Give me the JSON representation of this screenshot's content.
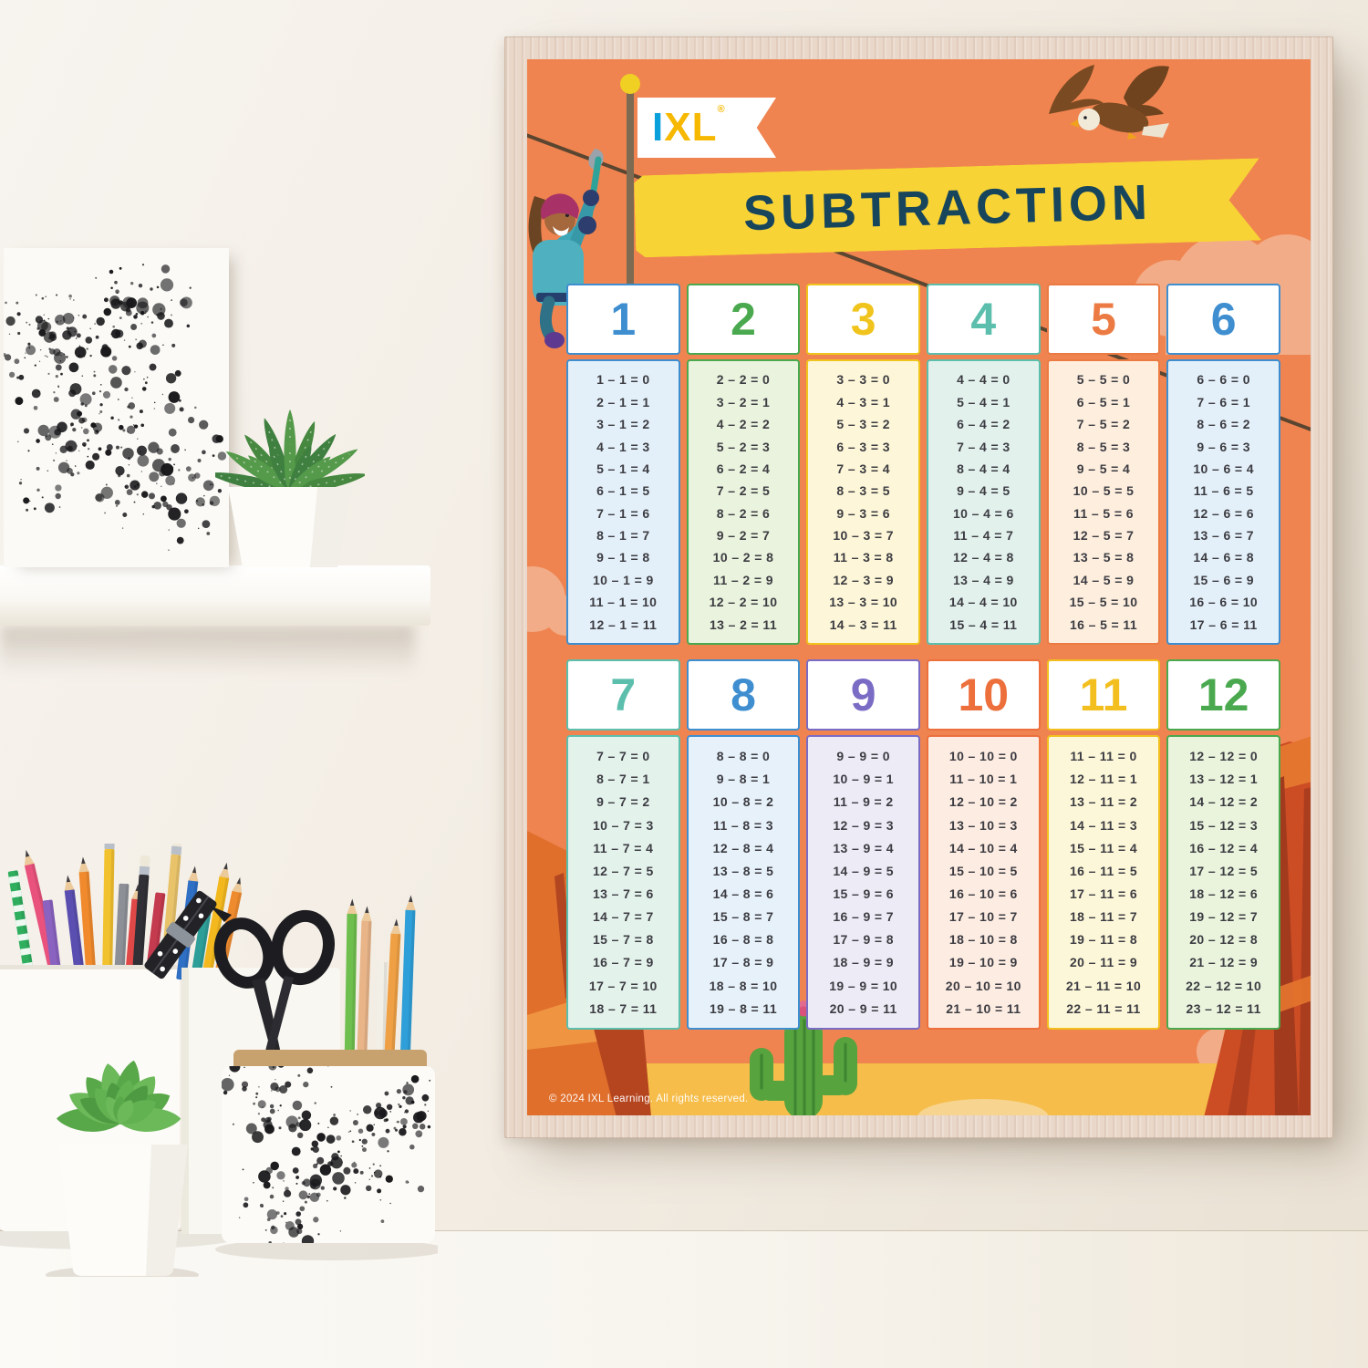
{
  "poster": {
    "brand_i": "I",
    "brand_xl": "XL",
    "registered": "®",
    "title": "SUBTRACTION",
    "copyright": "© 2024 IXL Learning. All rights reserved.",
    "colors": {
      "poster_background": "#ef8450",
      "banner_yellow": "#f8d335",
      "title_text": "#17455c",
      "sand": "#f6bd4a",
      "brand_blue": "#0aa0dc",
      "brand_gold": "#f6b800",
      "equation_text": "#3c3c42"
    },
    "columns": [
      {
        "header": "1",
        "accent": "#3e8ed0",
        "tint": "#e4f0f9",
        "facts": [
          "1 – 1 = 0",
          "2 – 1 = 1",
          "3 – 1 = 2",
          "4 – 1 = 3",
          "5 – 1 = 4",
          "6 – 1 = 5",
          "7 – 1 = 6",
          "8 – 1 = 7",
          "9 – 1 = 8",
          "10 – 1 = 9",
          "11 – 1 = 10",
          "12 – 1 = 11"
        ]
      },
      {
        "header": "2",
        "accent": "#4aa94e",
        "tint": "#eaf3dd",
        "facts": [
          "2 – 2 = 0",
          "3 – 2 = 1",
          "4 – 2 = 2",
          "5 – 2 = 3",
          "6 – 2 = 4",
          "7 – 2 = 5",
          "8 – 2 = 6",
          "9 – 2 = 7",
          "10 – 2 = 8",
          "11 – 2 = 9",
          "12 – 2 = 10",
          "13 – 2 = 11"
        ]
      },
      {
        "header": "3",
        "accent": "#f0c41c",
        "tint": "#fdf6d8",
        "facts": [
          "3 – 3 = 0",
          "4 – 3 = 1",
          "5 – 3 = 2",
          "6 – 3 = 3",
          "7 – 3 = 4",
          "8 – 3 = 5",
          "9 – 3 = 6",
          "10 – 3 = 7",
          "11 – 3 = 8",
          "12 – 3 = 9",
          "13 – 3 = 10",
          "14 – 3 = 11"
        ]
      },
      {
        "header": "4",
        "accent": "#5cbfad",
        "tint": "#e2f1ec",
        "facts": [
          "4 – 4 = 0",
          "5 – 4 = 1",
          "6 – 4 = 2",
          "7 – 4 = 3",
          "8 – 4 = 4",
          "9 – 4 = 5",
          "10 – 4 = 6",
          "11 – 4 = 7",
          "12 – 4 = 8",
          "13 – 4 = 9",
          "14 – 4 = 10",
          "15 – 4 = 11"
        ]
      },
      {
        "header": "5",
        "accent": "#ec7b43",
        "tint": "#fdeede",
        "facts": [
          "5 – 5 = 0",
          "6 – 5 = 1",
          "7 – 5 = 2",
          "8 – 5 = 3",
          "9 – 5 = 4",
          "10 – 5 = 5",
          "11 – 5 = 6",
          "12 – 5 = 7",
          "13 – 5 = 8",
          "14 – 5 = 9",
          "15 – 5 = 10",
          "16 – 5 = 11"
        ]
      },
      {
        "header": "6",
        "accent": "#3e8ed0",
        "tint": "#e4f0f9",
        "facts": [
          "6 – 6 = 0",
          "7 – 6 = 1",
          "8 – 6 = 2",
          "9 – 6 = 3",
          "10 – 6 = 4",
          "11 – 6 = 5",
          "12 – 6 = 6",
          "13 – 6 = 7",
          "14 – 6 = 8",
          "15 – 6 = 9",
          "16 – 6 = 10",
          "17 – 6 = 11"
        ]
      },
      {
        "header": "7",
        "accent": "#5cbfad",
        "tint": "#e4f2ec",
        "facts": [
          "7 – 7 = 0",
          "8 – 7 = 1",
          "9 – 7 = 2",
          "10 – 7 = 3",
          "11 – 7 = 4",
          "12 – 7 = 5",
          "13 – 7 = 6",
          "14 – 7 = 7",
          "15 – 7 = 8",
          "16 – 7 = 9",
          "17 – 7 = 10",
          "18 – 7 = 11"
        ]
      },
      {
        "header": "8",
        "accent": "#3e8ed0",
        "tint": "#e7f1f9",
        "facts": [
          "8 – 8 = 0",
          "9 – 8 = 1",
          "10 – 8 = 2",
          "11 – 8 = 3",
          "12 – 8 = 4",
          "13 – 8 = 5",
          "14 – 8 = 6",
          "15 – 8 = 7",
          "16 – 8 = 8",
          "17 – 8 = 9",
          "18 – 8 = 10",
          "19 – 8 = 11"
        ]
      },
      {
        "header": "9",
        "accent": "#7a6cc5",
        "tint": "#edebf6",
        "facts": [
          "9 – 9 = 0",
          "10 – 9 = 1",
          "11 – 9 = 2",
          "12 – 9 = 3",
          "13 – 9 = 4",
          "14 – 9 = 5",
          "15 – 9 = 6",
          "16 – 9 = 7",
          "17 – 9 = 8",
          "18 – 9 = 9",
          "19 – 9 = 10",
          "20 – 9 = 11"
        ]
      },
      {
        "header": "10",
        "accent": "#ec6f3c",
        "tint": "#fdece2",
        "facts": [
          "10 – 10 = 0",
          "11 – 10 = 1",
          "12 – 10 = 2",
          "13 – 10 = 3",
          "14 – 10 = 4",
          "15 – 10 = 5",
          "16 – 10 = 6",
          "17 – 10 = 7",
          "18 – 10 = 8",
          "19 – 10 = 9",
          "20 – 10 = 10",
          "21 – 10 = 11"
        ]
      },
      {
        "header": "11",
        "accent": "#f2bf1e",
        "tint": "#fdf7d9",
        "facts": [
          "11 – 11 = 0",
          "12 – 11 = 1",
          "13 – 11 = 2",
          "14 – 11 = 3",
          "15 – 11 = 4",
          "16 – 11 = 5",
          "17 – 11 = 6",
          "18 – 11 = 7",
          "19 – 11 = 8",
          "20 – 11 = 9",
          "21 – 11 = 10",
          "22 – 11 = 11"
        ]
      },
      {
        "header": "12",
        "accent": "#4aa94e",
        "tint": "#eaf4dd",
        "facts": [
          "12 – 12 = 0",
          "13 – 12 = 1",
          "14 – 12 = 2",
          "15 – 12 = 3",
          "16 – 12 = 4",
          "17 – 12 = 5",
          "18 – 12 = 6",
          "19 – 12 = 7",
          "20 – 12 = 8",
          "21 – 12 = 9",
          "22 – 12 = 10",
          "23 – 12 = 11"
        ]
      }
    ]
  }
}
